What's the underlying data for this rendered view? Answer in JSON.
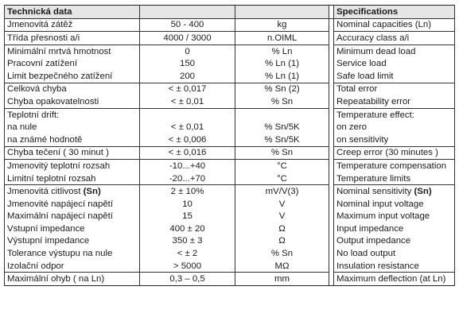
{
  "header": {
    "cz_title": "Technická data",
    "en_title": "Specifications"
  },
  "rows": [
    {
      "cz": "Jmenovitá zátěž",
      "value": "50 - 400",
      "unit": "kg",
      "en": "Nominal capacities (Ln)"
    },
    {
      "cz": "Třída přesnosti a/i",
      "value": "4000 / 3000",
      "unit": "n.OIML",
      "en": "Accuracy class a/i"
    },
    {
      "cz": "Minimální mrtvá hmotnost",
      "value": "0",
      "unit": "% Ln",
      "en": "Minimum dead load"
    },
    {
      "cz": "Pracovní zatížení",
      "value": "150",
      "unit": "% Ln (1)",
      "en": "Service load"
    },
    {
      "cz": "Limit bezpečného zatížení",
      "value": "200",
      "unit": "% Ln (1)",
      "en": "Safe load limit"
    },
    {
      "cz": "Celková chyba",
      "value": "< ± 0,017",
      "unit": "% Sn (2)",
      "en": "Total error"
    },
    {
      "cz": "Chyba opakovatelnosti",
      "value": "< ± 0,01",
      "unit": "% Sn",
      "en": "Repeatability error"
    },
    {
      "cz": "Teplotní drift:",
      "value": "",
      "unit": "",
      "en": "Temperature effect:"
    },
    {
      "cz": "na nule",
      "value": "< ± 0,01",
      "unit": "% Sn/5K",
      "en": "on zero"
    },
    {
      "cz": "na známé hodnotě",
      "value": "< ± 0,006",
      "unit": "% Sn/5K",
      "en": "on sensitivity"
    },
    {
      "cz": "Chyba tečení ( 30 minut )",
      "value": "< ± 0,016",
      "unit": "% Sn",
      "en": "Creep error (30 minutes )"
    },
    {
      "cz": "Jmenovitý teplotní rozsah",
      "value": "-10...+40",
      "unit": "°C",
      "en": "Temperature compensation"
    },
    {
      "cz": "Limitní teplotní rozsah",
      "value": "-20...+70",
      "unit": "°C",
      "en": "Temperature limits"
    },
    {
      "cz": "Jmenovitá citlivost",
      "cz_bold": "(Sn)",
      "value": "2 ± 10%",
      "unit": "mV/V(3)",
      "en": "Nominal sensitivity",
      "en_bold": "(Sn)"
    },
    {
      "cz": "Jmenovité napájecí napětí",
      "value": "10",
      "unit": "V",
      "en": "Nominal input voltage"
    },
    {
      "cz": "Maximální napájecí napětí",
      "value": "15",
      "unit": "V",
      "en": "Maximum input voltage"
    },
    {
      "cz": "Vstupní impedance",
      "value": "400 ± 20",
      "unit": "Ω",
      "en": "Input impedance"
    },
    {
      "cz": "Výstupní impedance",
      "value": "350 ± 3",
      "unit": "Ω",
      "en": "Output impedance"
    },
    {
      "cz": "Tolerance výstupu na nule",
      "value": "< ± 2",
      "unit": "% Sn",
      "en": "No load output"
    },
    {
      "cz": "Izolační odpor",
      "value": "> 5000",
      "unit": "MΩ",
      "en": "Insulation resistance"
    },
    {
      "cz": "Maximální ohyb ( na Ln)",
      "value": "0,3 – 0,5",
      "unit": "mm",
      "en": "Maximum deflection (at Ln)"
    }
  ]
}
